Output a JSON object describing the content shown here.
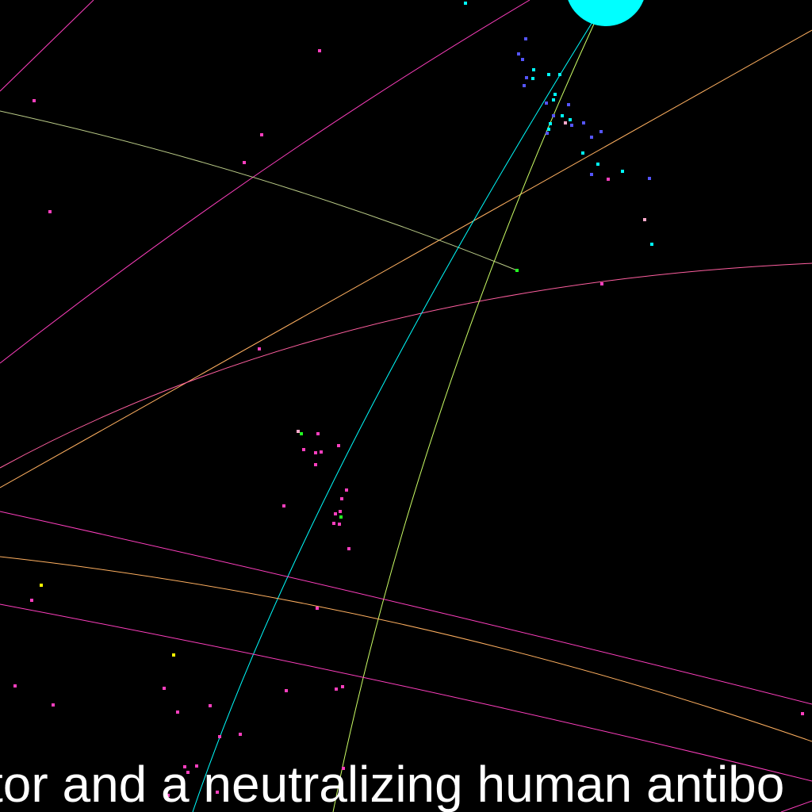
{
  "caption": "tor and a neutralizing human antibo",
  "palette": {
    "background": "#000000",
    "caption_text": "#ffffff",
    "cyan": "#00ffff",
    "magenta": "#ff3fbf",
    "pink": "#ff5fa0",
    "orange": "#ffb060",
    "yellow_green": "#ccff66",
    "pale_green": "#bbcc88",
    "green": "#22ff22",
    "yellow": "#ffff00",
    "blue": "#5555ff",
    "light_pink": "#ffaacc"
  },
  "elements": {
    "sphere": {
      "name": "cyan-sphere",
      "color": "#00ffff"
    },
    "curves": [
      {
        "name": "curve-magenta-upper",
        "color": "#ff3fbf"
      },
      {
        "name": "curve-orange-diagonal",
        "color": "#ffb060"
      },
      {
        "name": "curve-pale-green",
        "color": "#bbcc88"
      },
      {
        "name": "curve-pink-arc",
        "color": "#ff5fa0"
      },
      {
        "name": "curve-cyan-ray",
        "color": "#00ffff"
      },
      {
        "name": "curve-yellow-green-ray",
        "color": "#ccff66"
      },
      {
        "name": "curve-magenta-lower-1",
        "color": "#ff3fbf"
      },
      {
        "name": "curve-orange-lower",
        "color": "#ffb060"
      },
      {
        "name": "curve-magenta-lower-2",
        "color": "#ff3fbf"
      },
      {
        "name": "curve-magenta-corner",
        "color": "#ff3fbf"
      }
    ]
  }
}
